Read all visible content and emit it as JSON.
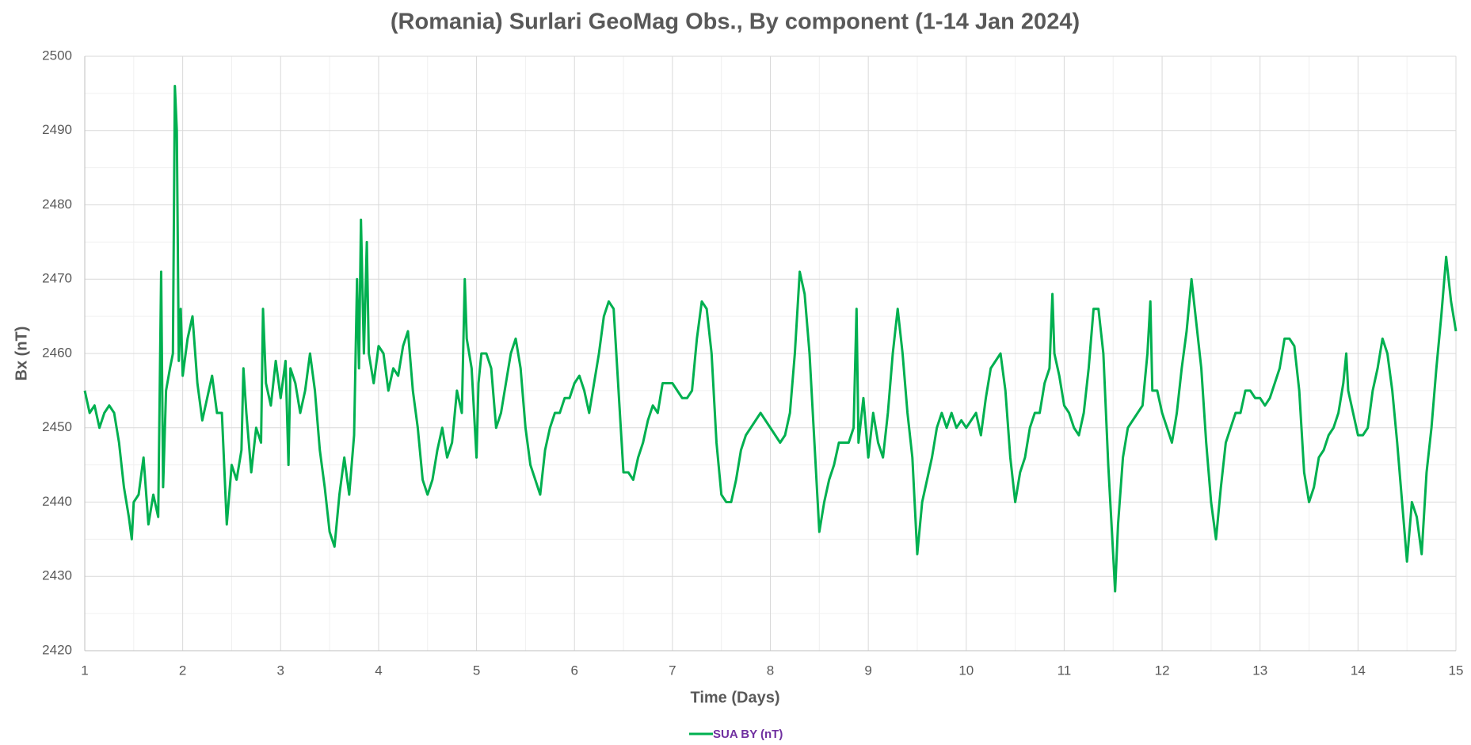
{
  "chart_data": {
    "type": "line",
    "title": "(Romania) Surlari GeoMag Obs., By component (1-14 Jan 2024)",
    "x_label": "Time (Days)",
    "y_label": "Bx (nT)",
    "xlim": [
      1,
      15
    ],
    "xticks": [
      1,
      2,
      3,
      4,
      5,
      6,
      7,
      8,
      9,
      10,
      11,
      12,
      13,
      14,
      15
    ],
    "ylim": [
      2420,
      2500
    ],
    "yticks": [
      2420,
      2430,
      2440,
      2450,
      2460,
      2470,
      2480,
      2490,
      2500
    ],
    "grid": true,
    "legend": "bottom",
    "legend_color": "#7030a0",
    "x": [
      1.0,
      1.05,
      1.1,
      1.15,
      1.2,
      1.25,
      1.3,
      1.35,
      1.4,
      1.45,
      1.48,
      1.5,
      1.55,
      1.6,
      1.65,
      1.7,
      1.75,
      1.78,
      1.8,
      1.83,
      1.87,
      1.9,
      1.92,
      1.94,
      1.96,
      1.98,
      2.0,
      2.05,
      2.1,
      2.15,
      2.2,
      2.25,
      2.3,
      2.35,
      2.4,
      2.45,
      2.5,
      2.55,
      2.6,
      2.62,
      2.65,
      2.7,
      2.75,
      2.8,
      2.82,
      2.85,
      2.9,
      2.95,
      3.0,
      3.05,
      3.08,
      3.1,
      3.15,
      3.2,
      3.25,
      3.3,
      3.35,
      3.4,
      3.45,
      3.5,
      3.55,
      3.6,
      3.65,
      3.7,
      3.75,
      3.78,
      3.8,
      3.82,
      3.85,
      3.88,
      3.9,
      3.95,
      4.0,
      4.05,
      4.1,
      4.15,
      4.2,
      4.25,
      4.3,
      4.35,
      4.4,
      4.45,
      4.5,
      4.55,
      4.6,
      4.65,
      4.7,
      4.75,
      4.8,
      4.85,
      4.88,
      4.9,
      4.95,
      5.0,
      5.02,
      5.05,
      5.1,
      5.15,
      5.2,
      5.25,
      5.3,
      5.35,
      5.4,
      5.45,
      5.5,
      5.55,
      5.6,
      5.65,
      5.7,
      5.75,
      5.8,
      5.85,
      5.9,
      5.95,
      6.0,
      6.05,
      6.1,
      6.15,
      6.2,
      6.25,
      6.3,
      6.35,
      6.4,
      6.45,
      6.5,
      6.55,
      6.6,
      6.65,
      6.7,
      6.75,
      6.8,
      6.85,
      6.9,
      6.95,
      7.0,
      7.05,
      7.1,
      7.15,
      7.2,
      7.25,
      7.3,
      7.35,
      7.4,
      7.45,
      7.5,
      7.55,
      7.6,
      7.65,
      7.7,
      7.75,
      7.8,
      7.85,
      7.9,
      7.95,
      8.0,
      8.05,
      8.1,
      8.15,
      8.2,
      8.25,
      8.3,
      8.35,
      8.4,
      8.45,
      8.5,
      8.55,
      8.6,
      8.65,
      8.7,
      8.75,
      8.8,
      8.85,
      8.88,
      8.9,
      8.95,
      9.0,
      9.05,
      9.1,
      9.15,
      9.2,
      9.25,
      9.3,
      9.35,
      9.4,
      9.45,
      9.5,
      9.55,
      9.6,
      9.65,
      9.7,
      9.75,
      9.8,
      9.85,
      9.9,
      9.95,
      10.0,
      10.05,
      10.1,
      10.15,
      10.2,
      10.25,
      10.3,
      10.35,
      10.4,
      10.45,
      10.5,
      10.55,
      10.6,
      10.65,
      10.7,
      10.75,
      10.8,
      10.85,
      10.88,
      10.9,
      10.95,
      11.0,
      11.05,
      11.1,
      11.15,
      11.2,
      11.25,
      11.3,
      11.35,
      11.4,
      11.45,
      11.5,
      11.52,
      11.55,
      11.6,
      11.65,
      11.7,
      11.75,
      11.8,
      11.85,
      11.88,
      11.9,
      11.95,
      12.0,
      12.05,
      12.1,
      12.15,
      12.2,
      12.25,
      12.3,
      12.35,
      12.4,
      12.45,
      12.5,
      12.55,
      12.6,
      12.65,
      12.7,
      12.75,
      12.8,
      12.85,
      12.9,
      12.95,
      13.0,
      13.05,
      13.1,
      13.15,
      13.2,
      13.25,
      13.3,
      13.35,
      13.4,
      13.45,
      13.5,
      13.55,
      13.6,
      13.65,
      13.7,
      13.75,
      13.8,
      13.85,
      13.88,
      13.9,
      13.95,
      14.0,
      14.05,
      14.1,
      14.15,
      14.2,
      14.25,
      14.3,
      14.35,
      14.4,
      14.45,
      14.5,
      14.55,
      14.6,
      14.65,
      14.7,
      14.75,
      14.8,
      14.85,
      14.9,
      14.95,
      15.0
    ],
    "series": [
      {
        "name": "SUA BY (nT)",
        "color": "#00b050",
        "values": [
          2455,
          2452,
          2453,
          2450,
          2452,
          2453,
          2452,
          2448,
          2442,
          2438,
          2435,
          2440,
          2441,
          2446,
          2437,
          2441,
          2438,
          2471,
          2442,
          2455,
          2458,
          2460,
          2496,
          2490,
          2459,
          2466,
          2457,
          2462,
          2465,
          2456,
          2451,
          2454,
          2457,
          2452,
          2452,
          2437,
          2445,
          2443,
          2447,
          2458,
          2452,
          2444,
          2450,
          2448,
          2466,
          2456,
          2453,
          2459,
          2454,
          2459,
          2445,
          2458,
          2456,
          2452,
          2455,
          2460,
          2455,
          2447,
          2442,
          2436,
          2434,
          2441,
          2446,
          2441,
          2449,
          2470,
          2458,
          2478,
          2460,
          2475,
          2460,
          2456,
          2461,
          2460,
          2455,
          2458,
          2457,
          2461,
          2463,
          2455,
          2450,
          2443,
          2441,
          2443,
          2447,
          2450,
          2446,
          2448,
          2455,
          2452,
          2470,
          2462,
          2458,
          2446,
          2456,
          2460,
          2460,
          2458,
          2450,
          2452,
          2456,
          2460,
          2462,
          2458,
          2450,
          2445,
          2443,
          2441,
          2447,
          2450,
          2452,
          2452,
          2454,
          2454,
          2456,
          2457,
          2455,
          2452,
          2456,
          2460,
          2465,
          2467,
          2466,
          2455,
          2444,
          2444,
          2443,
          2446,
          2448,
          2451,
          2453,
          2452,
          2456,
          2456,
          2456,
          2455,
          2454,
          2454,
          2455,
          2462,
          2467,
          2466,
          2460,
          2448,
          2441,
          2440,
          2440,
          2443,
          2447,
          2449,
          2450,
          2451,
          2452,
          2451,
          2450,
          2449,
          2448,
          2449,
          2452,
          2460,
          2471,
          2468,
          2460,
          2448,
          2436,
          2440,
          2443,
          2445,
          2448,
          2448,
          2448,
          2450,
          2466,
          2448,
          2454,
          2446,
          2452,
          2448,
          2446,
          2452,
          2460,
          2466,
          2460,
          2452,
          2446,
          2433,
          2440,
          2443,
          2446,
          2450,
          2452,
          2450,
          2452,
          2450,
          2451,
          2450,
          2451,
          2452,
          2449,
          2454,
          2458,
          2459,
          2460,
          2455,
          2446,
          2440,
          2444,
          2446,
          2450,
          2452,
          2452,
          2456,
          2458,
          2468,
          2460,
          2457,
          2453,
          2452,
          2450,
          2449,
          2452,
          2458,
          2466,
          2466,
          2460,
          2445,
          2433,
          2428,
          2437,
          2446,
          2450,
          2451,
          2452,
          2453,
          2460,
          2467,
          2455,
          2455,
          2452,
          2450,
          2448,
          2452,
          2458,
          2463,
          2470,
          2464,
          2458,
          2448,
          2440,
          2435,
          2442,
          2448,
          2450,
          2452,
          2452,
          2455,
          2455,
          2454,
          2454,
          2453,
          2454,
          2456,
          2458,
          2462,
          2462,
          2461,
          2455,
          2444,
          2440,
          2442,
          2446,
          2447,
          2449,
          2450,
          2452,
          2456,
          2460,
          2455,
          2452,
          2449,
          2449,
          2450,
          2455,
          2458,
          2462,
          2460,
          2455,
          2448,
          2440,
          2432,
          2440,
          2438,
          2433,
          2444,
          2450,
          2458,
          2465,
          2473,
          2467,
          2463
        ]
      }
    ]
  }
}
